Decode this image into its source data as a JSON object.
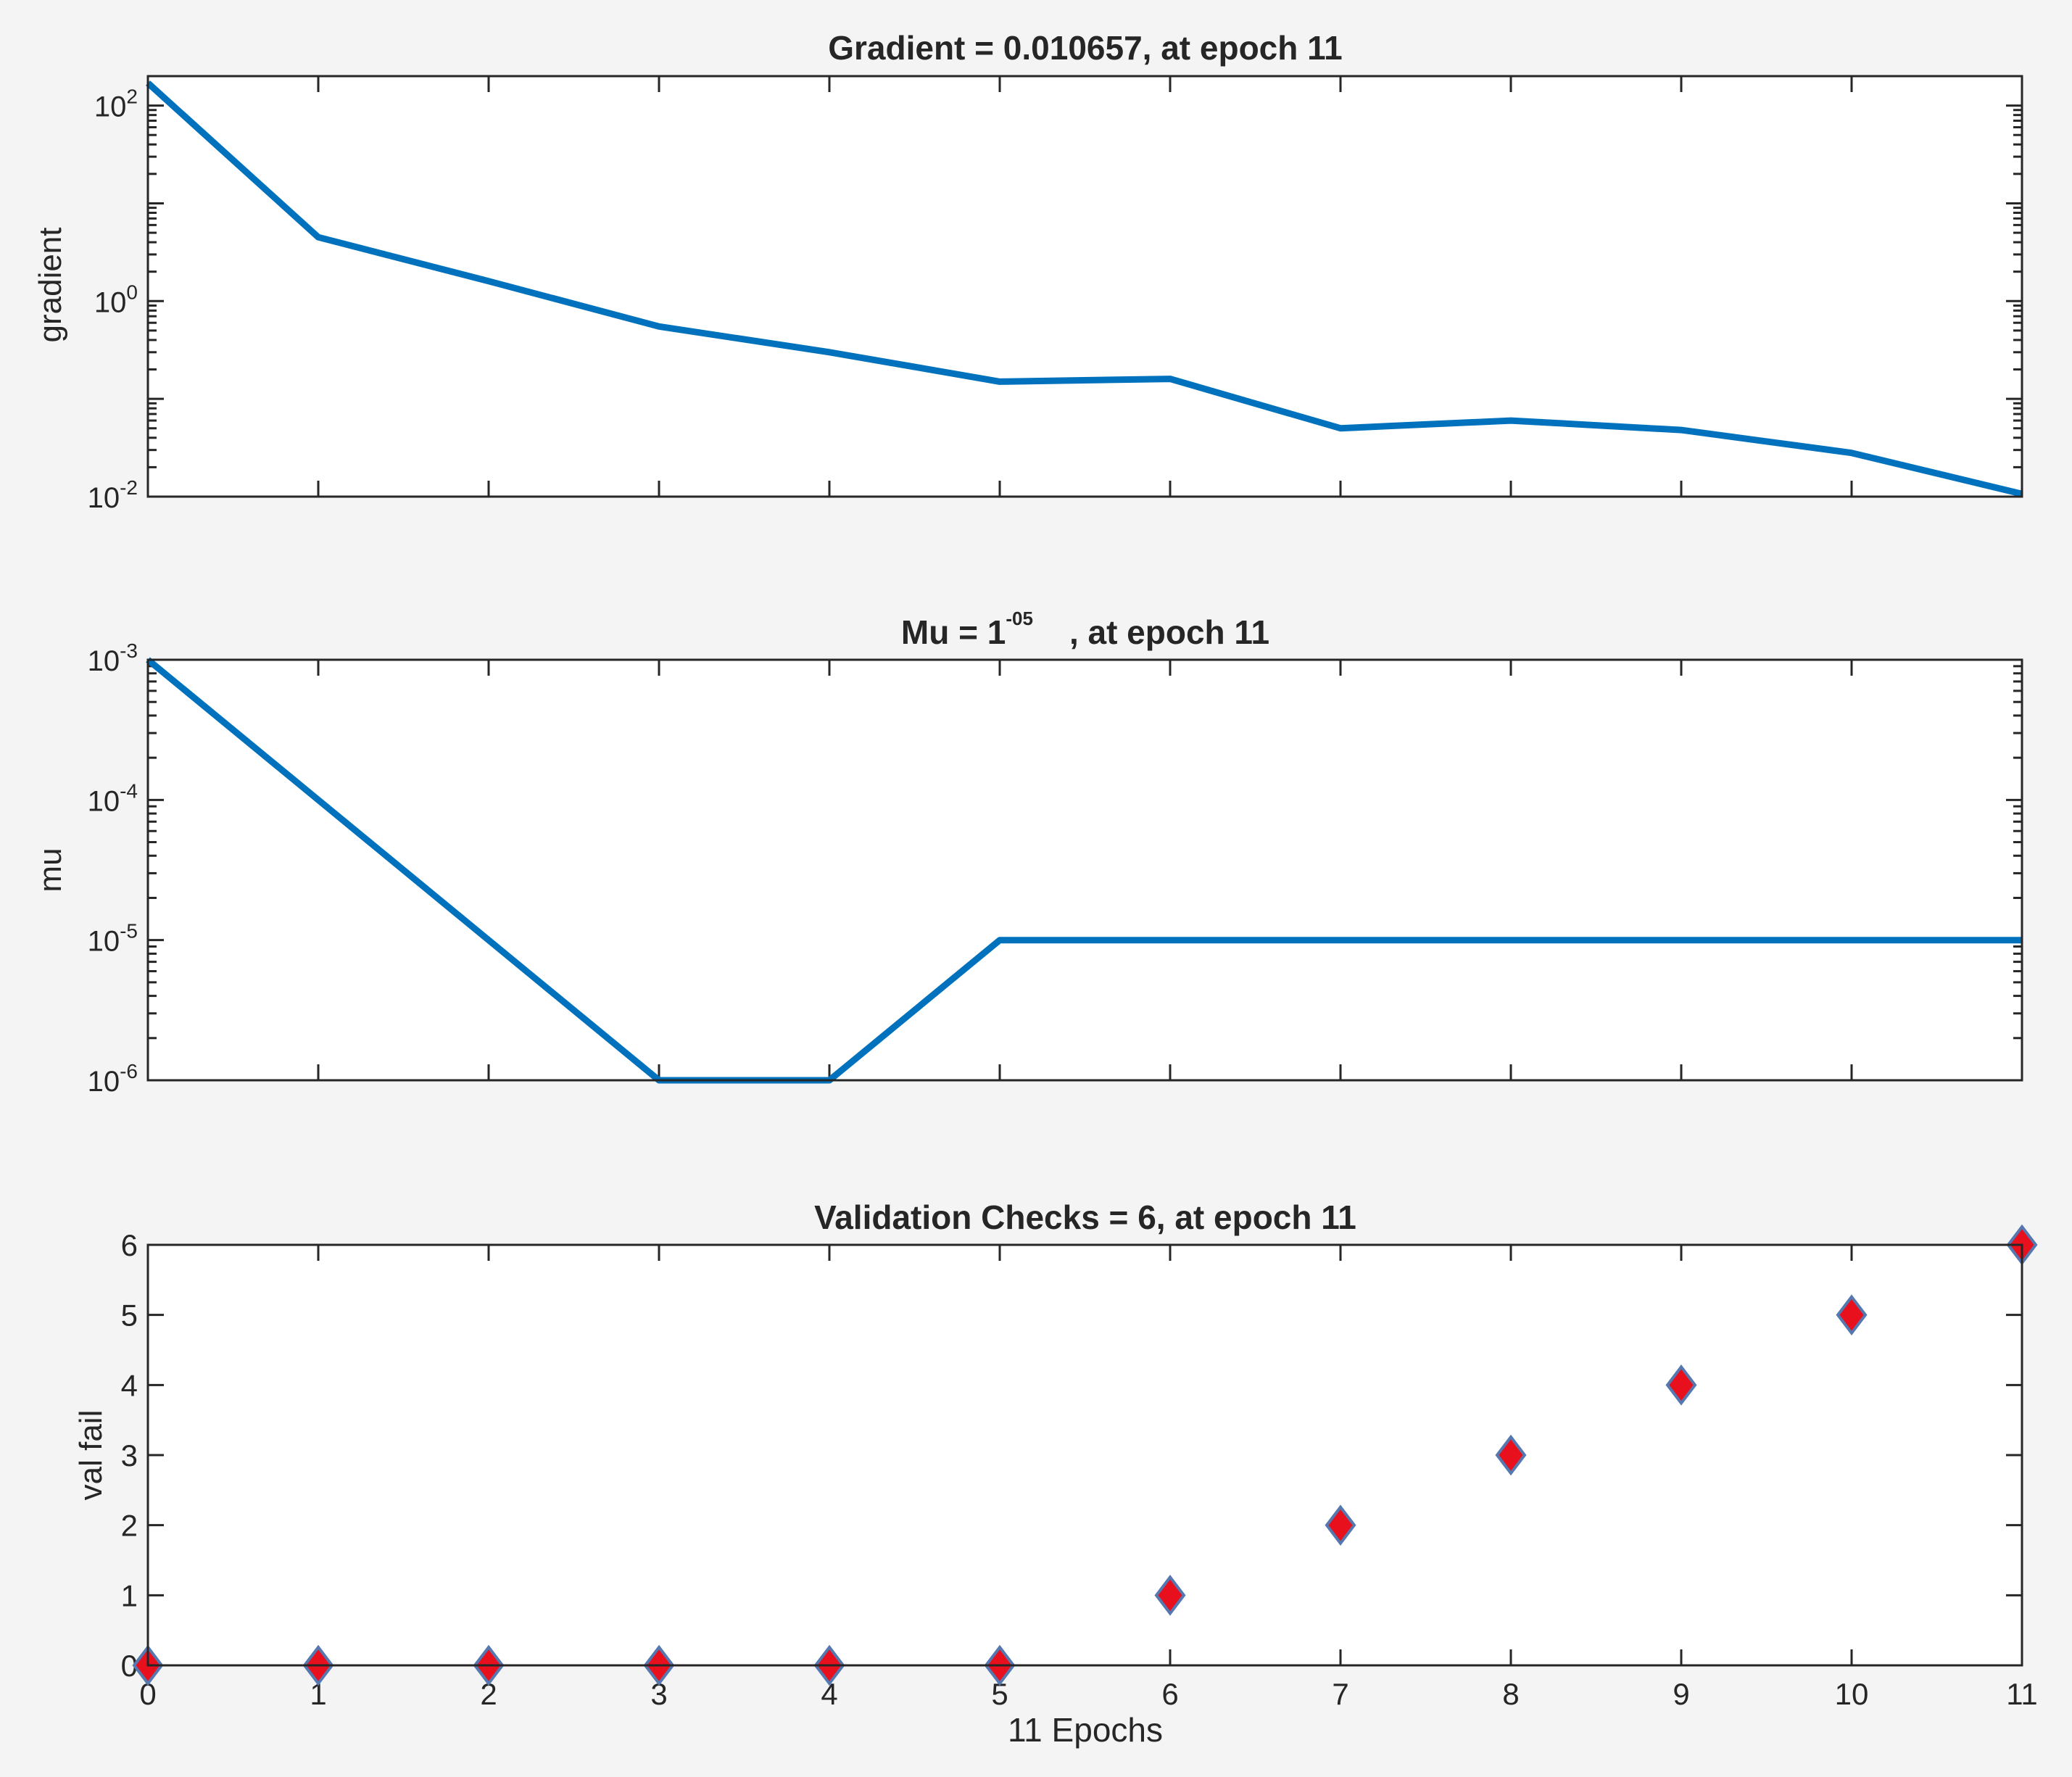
{
  "colors": {
    "line": "#0072BD",
    "marker_fill": "#E8101C",
    "marker_edge": "#5578B0",
    "figure_bg": "#F4F4F4",
    "axes_bg": "#FFFFFF",
    "axis": "#262626"
  },
  "chart_data": [
    {
      "type": "line",
      "title": "Gradient = 0.010657, at epoch 11",
      "ylabel": "gradient",
      "xlabel": "",
      "yscale": "log",
      "ylim": [
        0.01,
        200
      ],
      "xlim": [
        0,
        11
      ],
      "yticks": [
        {
          "value": 100,
          "base": "10",
          "exp": "2"
        },
        {
          "value": 1,
          "base": "10",
          "exp": "0"
        },
        {
          "value": 0.01,
          "base": "10",
          "exp": "-2"
        }
      ],
      "grid": false,
      "x": [
        0,
        1,
        2,
        3,
        4,
        5,
        6,
        7,
        8,
        9,
        10,
        11
      ],
      "series": [
        {
          "values": [
            170,
            4.5,
            1.6,
            0.55,
            0.3,
            0.15,
            0.16,
            0.05,
            0.06,
            0.048,
            0.028,
            0.010657
          ]
        }
      ]
    },
    {
      "type": "line",
      "title_main": "Mu = 1",
      "title_sup": "-05",
      "title_tail": ", at epoch 11",
      "ylabel": "mu",
      "xlabel": "",
      "yscale": "log",
      "ylim": [
        1e-06,
        0.001
      ],
      "xlim": [
        0,
        11
      ],
      "yticks": [
        {
          "value": 0.001,
          "base": "10",
          "exp": "-3"
        },
        {
          "value": 0.0001,
          "base": "10",
          "exp": "-4"
        },
        {
          "value": 1e-05,
          "base": "10",
          "exp": "-5"
        },
        {
          "value": 1e-06,
          "base": "10",
          "exp": "-6"
        }
      ],
      "grid": false,
      "x": [
        0,
        1,
        2,
        3,
        4,
        5,
        6,
        7,
        8,
        9,
        10,
        11
      ],
      "series": [
        {
          "values": [
            0.001,
            0.0001,
            1e-05,
            1e-06,
            1e-06,
            1e-05,
            1e-05,
            1e-05,
            1e-05,
            1e-05,
            1e-05,
            1e-05
          ]
        }
      ]
    },
    {
      "type": "scatter",
      "title": "Validation Checks = 6, at epoch 11",
      "ylabel": "val fail",
      "xlabel": "11 Epochs",
      "yscale": "linear",
      "ylim": [
        0,
        6
      ],
      "xlim": [
        0,
        11
      ],
      "yticks": [
        "0",
        "1",
        "2",
        "3",
        "4",
        "5",
        "6"
      ],
      "xticks": [
        "0",
        "1",
        "2",
        "3",
        "4",
        "5",
        "6",
        "7",
        "8",
        "9",
        "10",
        "11"
      ],
      "grid": false,
      "marker": "diamond",
      "x": [
        0,
        1,
        2,
        3,
        4,
        5,
        6,
        7,
        8,
        9,
        10,
        11
      ],
      "series": [
        {
          "values": [
            0,
            0,
            0,
            0,
            0,
            0,
            1,
            2,
            3,
            4,
            5,
            6
          ]
        }
      ]
    }
  ]
}
